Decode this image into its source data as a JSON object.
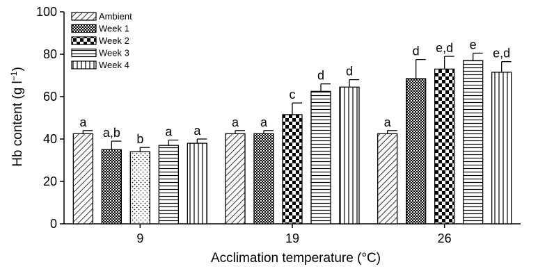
{
  "chart_data": {
    "type": "bar",
    "xlabel": "Acclimation temperature (°C)",
    "ylabel": {
      "main": "Hb content (g l",
      "sup": "−1",
      "close": ")"
    },
    "ylim": [
      0,
      100
    ],
    "yticks": [
      0,
      20,
      40,
      60,
      80,
      100
    ],
    "categories": [
      "9",
      "19",
      "26"
    ],
    "legend_position": "top-left",
    "series": [
      {
        "name": "Ambient",
        "pattern": "diagonal-hatch",
        "values": [
          42.5,
          42.5,
          42.5
        ],
        "errors": [
          1.5,
          1.5,
          1.5
        ],
        "labels": [
          "a",
          "a",
          "a"
        ]
      },
      {
        "name": "Week 1",
        "pattern": "dense-dots",
        "values": [
          35.0,
          42.5,
          68.5
        ],
        "errors": [
          4.0,
          1.5,
          9.0
        ],
        "labels": [
          "a,b",
          "a",
          "d"
        ]
      },
      {
        "name": "Week 2",
        "pattern": "checkerboard",
        "values": [
          34.0,
          51.5,
          73.0
        ],
        "errors": [
          2.0,
          5.5,
          6.0
        ],
        "labels": [
          "b",
          "c",
          "e,d"
        ]
      },
      {
        "name": "Week 3",
        "pattern": "horizontal-lines",
        "values": [
          37.0,
          62.5,
          77.0
        ],
        "errors": [
          2.5,
          3.5,
          3.5
        ],
        "labels": [
          "a",
          "d",
          "e"
        ]
      },
      {
        "name": "Week 4",
        "pattern": "vertical-lines",
        "values": [
          38.0,
          64.5,
          71.5
        ],
        "errors": [
          2.0,
          3.5,
          5.0
        ],
        "labels": [
          "a",
          "d",
          "e,d"
        ]
      }
    ]
  }
}
